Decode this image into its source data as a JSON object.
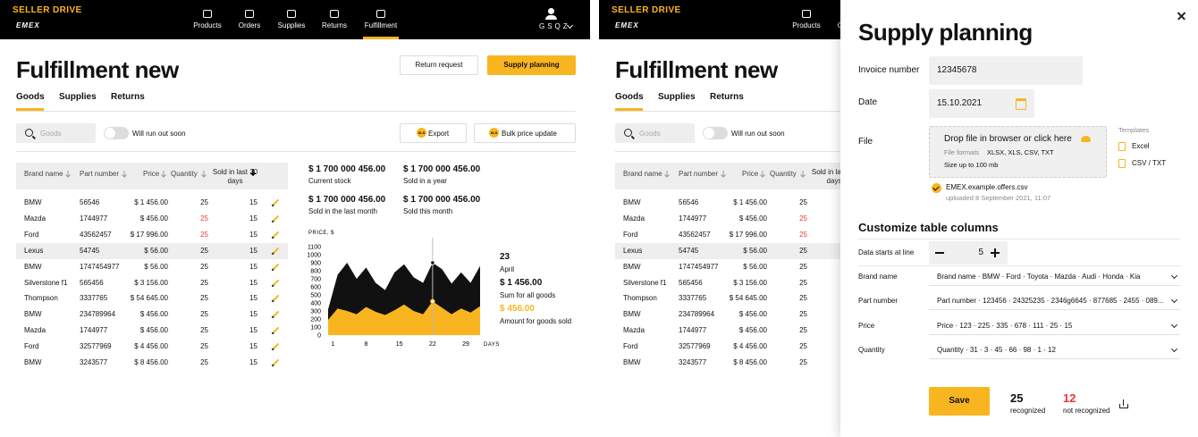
{
  "brand": {
    "name": "SELLER DRIVE",
    "logo": "EMEX"
  },
  "nav": [
    "Products",
    "Orders",
    "Supplies",
    "Returns",
    "Fulfillment"
  ],
  "active_nav": 4,
  "user": "GSQZ",
  "page": {
    "title": "Fulfillment new",
    "tabs": [
      "Goods",
      "Supplies",
      "Returns"
    ],
    "active_tab": 0,
    "return_request": "Return request",
    "supply_planning": "Supply planning",
    "search": "Goods",
    "toggle": "Will run out soon",
    "export": "Export",
    "bulk": "Bulk price update",
    "xls_badge": "XLS"
  },
  "table": {
    "columns": [
      "Brand name",
      "Part number",
      "Price",
      "Quantity",
      "Sold in last 30 days"
    ],
    "rows": [
      [
        "BMW",
        "56546",
        "$ 1 456.00",
        25,
        15
      ],
      [
        "Mazda",
        "1744977",
        "$ 456.00",
        25,
        15
      ],
      [
        "Ford",
        "43562457",
        "$ 17 996.00",
        25,
        15
      ],
      [
        "Lexus",
        "54745",
        "$ 56.00",
        25,
        15
      ],
      [
        "BMW",
        "1747454977",
        "$ 56.00",
        25,
        15
      ],
      [
        "Silverstone f1",
        "565456",
        "$ 3 156.00",
        25,
        15
      ],
      [
        "Thompson",
        "3337765",
        "$ 54 645.00",
        25,
        15
      ],
      [
        "BMW",
        "234789964",
        "$ 456.00",
        25,
        15
      ],
      [
        "Mazda",
        "1744977",
        "$ 456.00",
        25,
        15
      ],
      [
        "Ford",
        "32577969",
        "$ 4 456.00",
        25,
        15
      ],
      [
        "BMW",
        "3243577",
        "$ 8 456.00",
        25,
        15
      ]
    ],
    "alert_rows": [
      1,
      2
    ],
    "highlight_row": 3
  },
  "stats": [
    {
      "value": "$ 1 700 000 456.00",
      "label": "Current stock"
    },
    {
      "value": "$ 1 700 000 456.00",
      "label": "Sold in a year"
    },
    {
      "value": "$ 1 700 000 456.00",
      "label": "Sold in the last month"
    },
    {
      "value": "$ 1 700 000 456.00",
      "label": "Sold this month"
    }
  ],
  "chart": {
    "type": "area",
    "ylabel": "PRICE, $",
    "xlabel": "DAYS",
    "x": [
      0,
      2,
      4,
      6,
      8,
      10,
      12,
      14,
      16,
      18,
      20,
      22,
      24,
      26,
      28,
      30,
      32
    ],
    "xlim": [
      0,
      32
    ],
    "xticks": [
      1,
      8,
      15,
      22,
      29
    ],
    "ylim": [
      0,
      1100
    ],
    "yticks": [
      0,
      100,
      200,
      300,
      400,
      500,
      600,
      700,
      800,
      900,
      1000,
      1100
    ],
    "series": [
      {
        "color": "#111111",
        "values": [
          320,
          750,
          900,
          700,
          840,
          650,
          560,
          780,
          880,
          720,
          650,
          900,
          820,
          640,
          780,
          650,
          860
        ]
      },
      {
        "color": "#f9b520",
        "values": [
          190,
          330,
          300,
          260,
          350,
          290,
          250,
          310,
          380,
          300,
          260,
          420,
          340,
          260,
          330,
          280,
          360
        ]
      }
    ],
    "marker_index": 11
  },
  "tooltip": {
    "count": "23",
    "month": "April",
    "sum": "$ 1 456.00",
    "sum_label": "Sum for all goods",
    "amount": "$ 456.00",
    "amount_label": "Amount for goods sold"
  },
  "drawer": {
    "title": "Supply planning",
    "invoice": {
      "label": "Invoice number",
      "value": "12345678"
    },
    "date": {
      "label": "Date",
      "value": "15.10.2021"
    },
    "file": {
      "label": "File",
      "drop": "Drop file in browser or click here",
      "formats_label": "File formats",
      "formats": "XLSX, XLS, CSV, TXT",
      "size": "Size up to 100 mb",
      "templates": "Templates",
      "template_items": [
        "Excel",
        "CSV / TXT"
      ],
      "uploaded_name": "EMEX.example.offers.csv",
      "uploaded_at": "uploaded 8 September 2021, 11:07"
    },
    "columns_title": "Customize table columns",
    "start": {
      "label": "Data starts at line",
      "value": 5
    },
    "mappings": [
      {
        "label": "Brand name",
        "value": "Brand name · BMW · Ford · Toyota · Mazda · Audi · Honda · Kia"
      },
      {
        "label": "Part number",
        "value": "Part number · 123456 · 24325235 · 2346g6645 · 877685 · 2455 · 089..."
      },
      {
        "label": "Price",
        "value": "Price · 123 · 225 · 335 · 678 · 111 · 25 · 15"
      },
      {
        "label": "Quantity",
        "value": "Quantity · 31 · 3 · 45 · 66 · 98 · 1 · 12"
      }
    ],
    "save": "Save",
    "recognized": {
      "count": 25,
      "label": "recognized"
    },
    "not_recognized": {
      "count": 12,
      "label": "not recognized"
    }
  }
}
